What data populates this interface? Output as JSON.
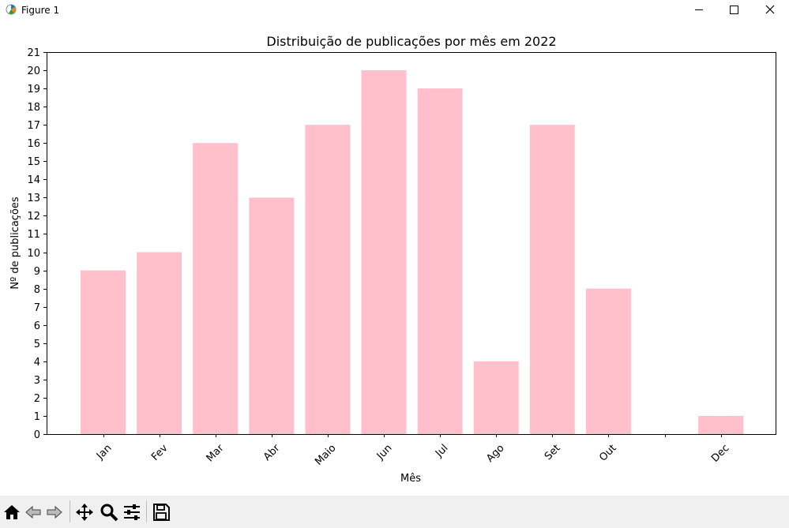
{
  "window": {
    "title": "Figure 1"
  },
  "colors": {
    "bar": "#ffc0cb",
    "axis": "#000000"
  },
  "toolbar": {
    "buttons": [
      "home-icon",
      "back-icon",
      "forward-icon",
      "pan-icon",
      "zoom-icon",
      "configure-subplots-icon",
      "save-icon"
    ]
  },
  "chart_data": {
    "type": "bar",
    "title": "Distribuição de publicações por mês em 2022",
    "xlabel": "Mês",
    "ylabel": "Nº de publicações",
    "categories": [
      "Jan",
      "Fev",
      "Mar",
      "Abr",
      "Maio",
      "Jun",
      "Jul",
      "Ago",
      "Set",
      "Out",
      "",
      "Dec"
    ],
    "values": [
      9,
      10,
      16,
      13,
      17,
      20,
      19,
      4,
      17,
      8,
      0,
      1
    ],
    "ylim": [
      0,
      21
    ],
    "yticks": [
      0,
      1,
      2,
      3,
      4,
      5,
      6,
      7,
      8,
      9,
      10,
      11,
      12,
      13,
      14,
      15,
      16,
      17,
      18,
      19,
      20,
      21
    ],
    "grid": false,
    "xtick_rotation": 45
  }
}
